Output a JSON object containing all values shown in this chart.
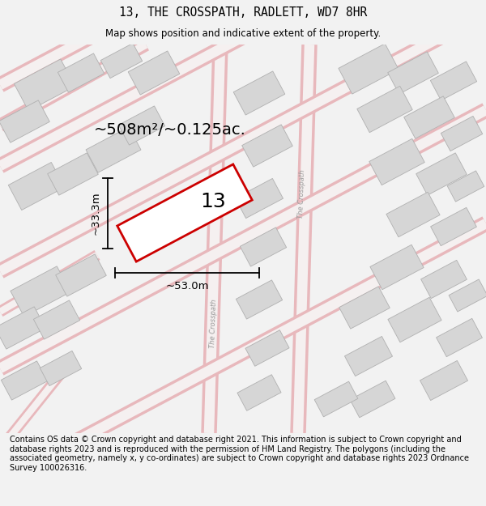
{
  "title": "13, THE CROSSPATH, RADLETT, WD7 8HR",
  "subtitle": "Map shows position and indicative extent of the property.",
  "footer": "Contains OS data © Crown copyright and database right 2021. This information is subject to Crown copyright and database rights 2023 and is reproduced with the permission of HM Land Registry. The polygons (including the associated geometry, namely x, y co-ordinates) are subject to Crown copyright and database rights 2023 Ordnance Survey 100026316.",
  "area_label": "~508m²/~0.125ac.",
  "width_label": "~53.0m",
  "height_label": "~33.3m",
  "plot_number": "13",
  "bg_color": "#f2f2f2",
  "map_bg": "#eeecec",
  "road_color": "#e8b8bc",
  "road_fill": "#f5f0f0",
  "building_color": "#d6d6d6",
  "building_edge": "#b0b0b0",
  "plot_edge_color": "#cc0000",
  "plot_fill": "#ffffff",
  "road_label_color": "#999999",
  "title_fontsize": 10.5,
  "subtitle_fontsize": 8.5,
  "footer_fontsize": 7.0,
  "area_fontsize": 14,
  "dim_fontsize": 9.5,
  "plot_num_fontsize": 18
}
